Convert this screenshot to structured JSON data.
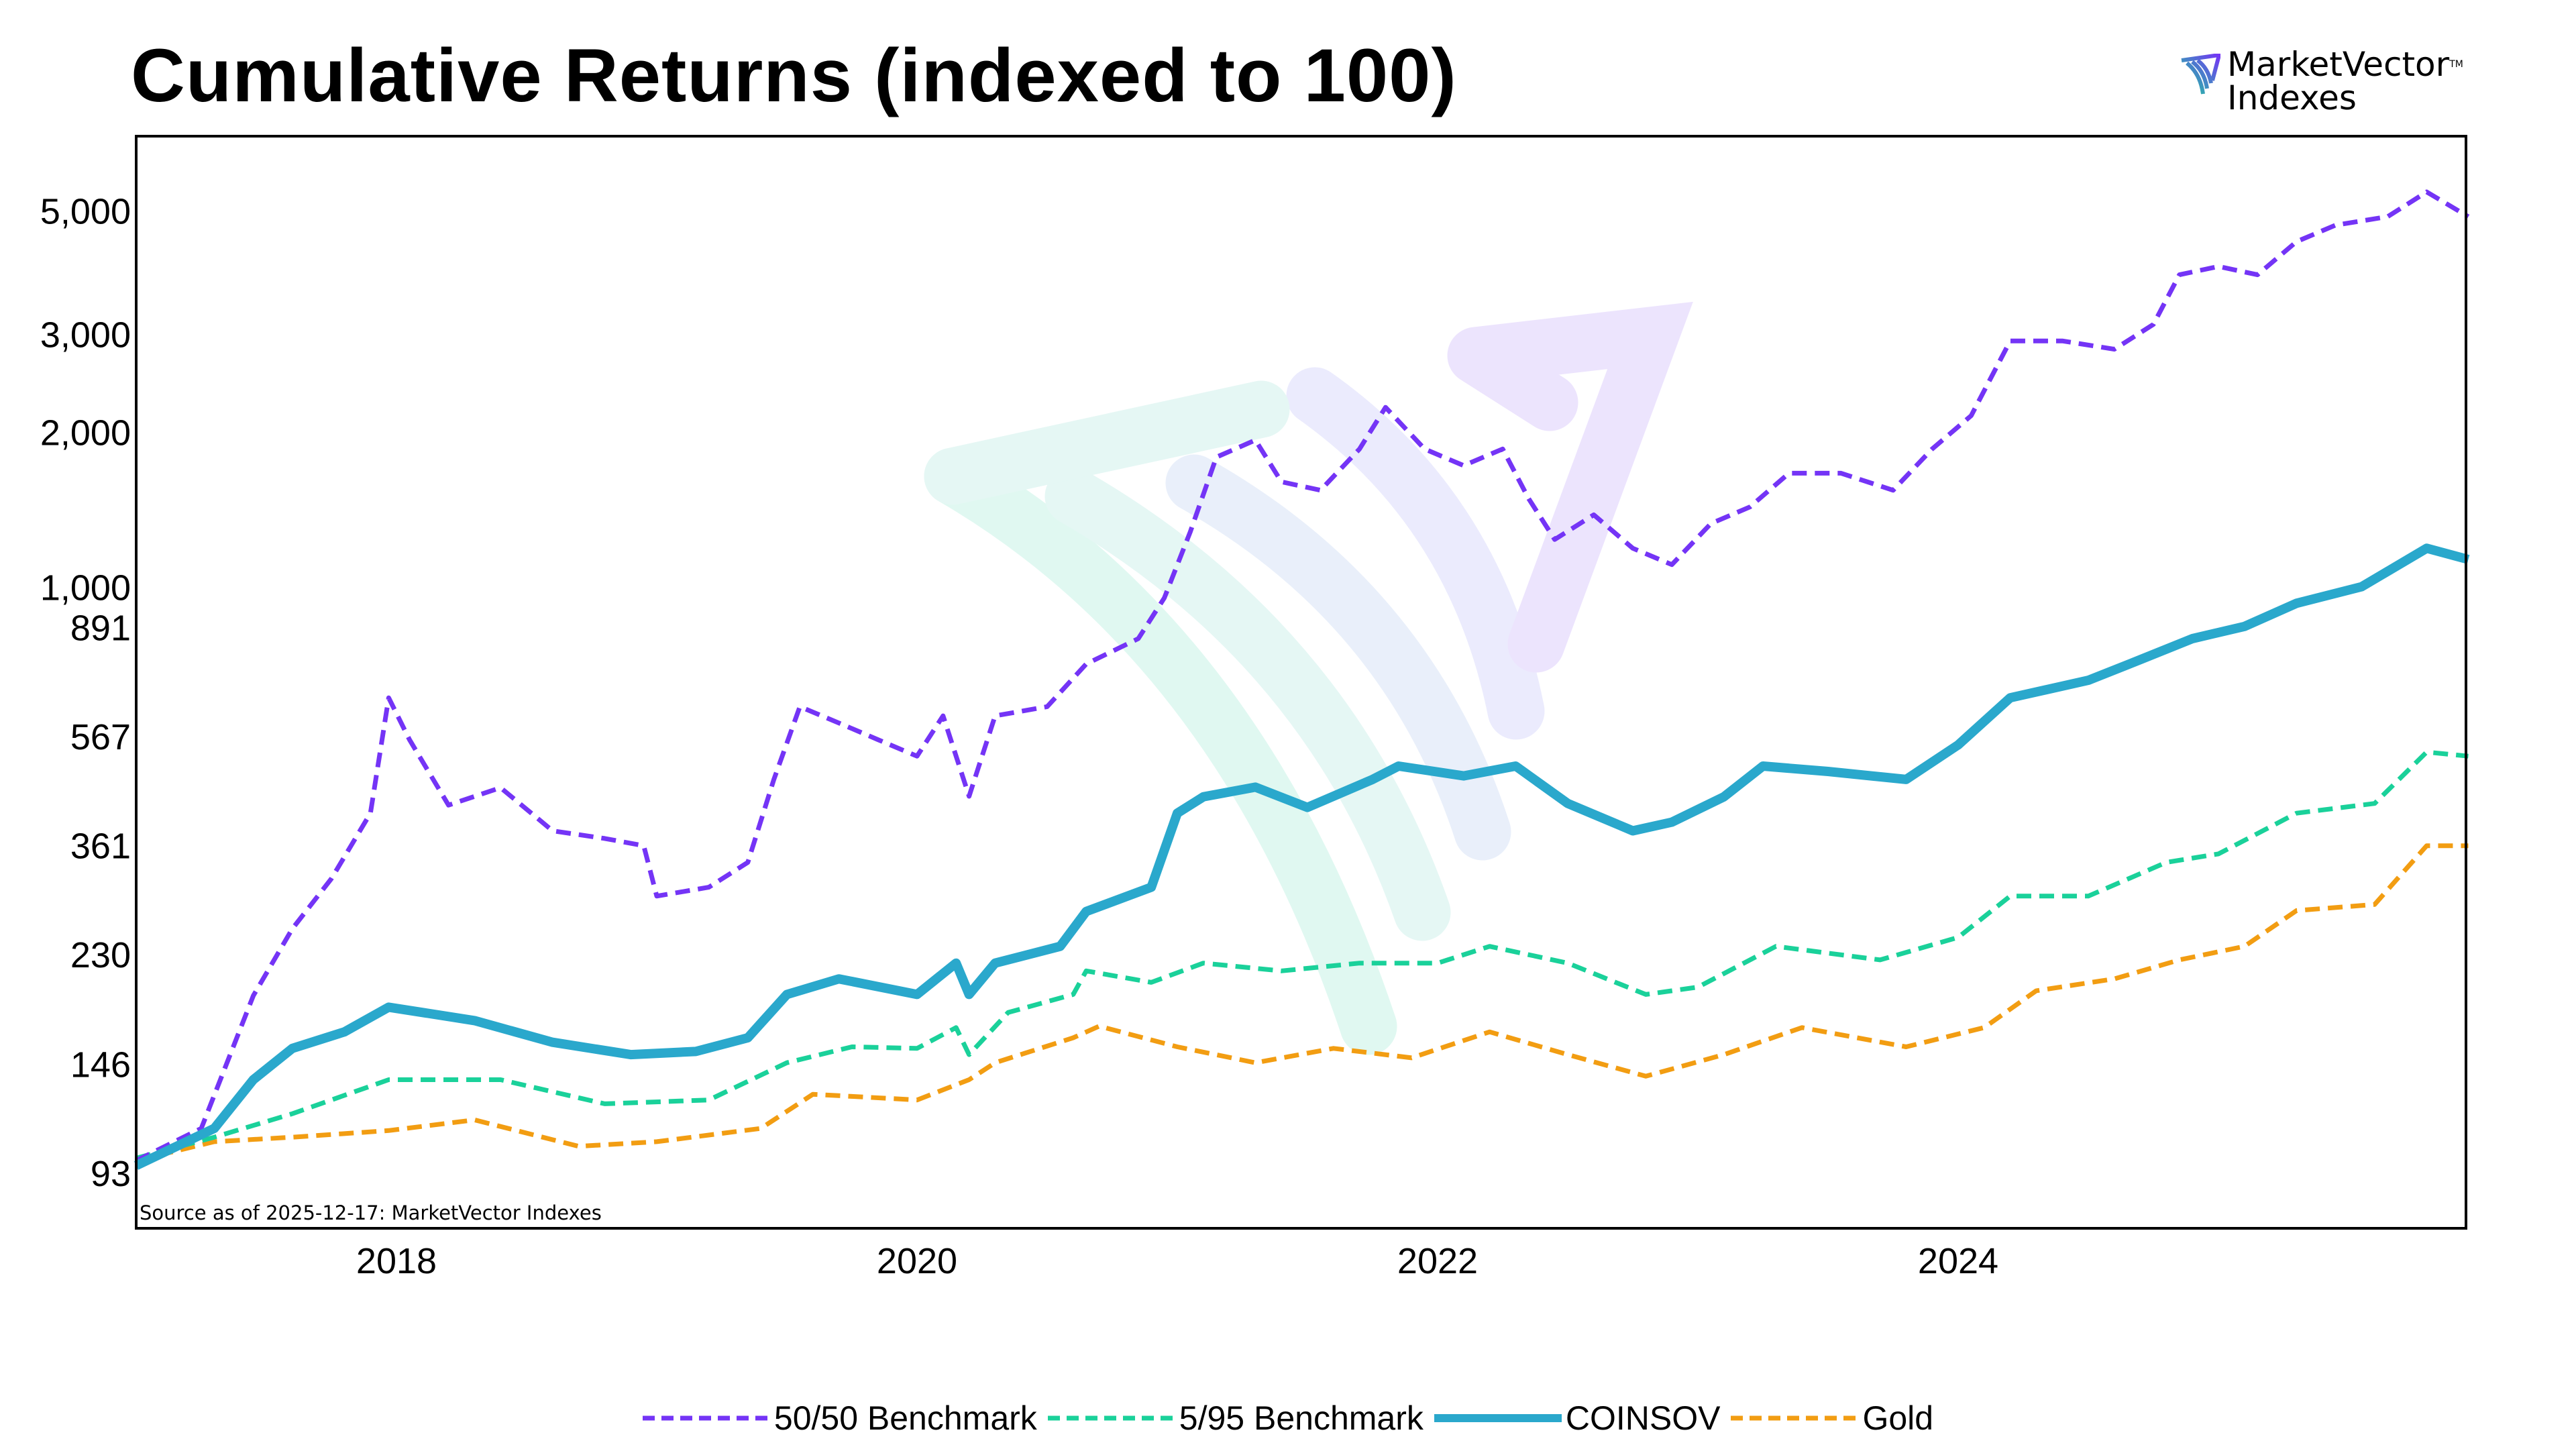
{
  "chart_data": {
    "type": "line",
    "title": "Cumulative Returns (indexed to 100)",
    "source_note": "Source as of 2025-12-17: MarketVector Indexes",
    "xlabel": "",
    "ylabel": "",
    "y_scale": "log",
    "ylim": [
      85,
      6500
    ],
    "xlim": [
      "2017-01-01",
      "2025-12-17"
    ],
    "x_ticks": [
      "2018",
      "2020",
      "2022",
      "2024"
    ],
    "y_ticks": [
      93,
      146,
      230,
      361,
      567,
      891,
      1000,
      2000,
      3000,
      5000
    ],
    "y_tick_labels": [
      "93",
      "146",
      "230",
      "361",
      "567",
      "891",
      "1,000",
      "2,000",
      "3,000",
      "5,000"
    ],
    "grid": false,
    "legend_position": "bottom",
    "series": [
      {
        "name": "50/50 Benchmark",
        "color": "#7434f6",
        "style": "dashed",
        "x": [
          2017.0,
          2017.25,
          2017.45,
          2017.6,
          2017.75,
          2017.9,
          2017.97,
          2018.05,
          2018.2,
          2018.4,
          2018.6,
          2018.8,
          2018.95,
          2019.0,
          2019.2,
          2019.35,
          2019.45,
          2019.55,
          2019.7,
          2019.85,
          2020.0,
          2020.1,
          2020.2,
          2020.3,
          2020.5,
          2020.65,
          2020.85,
          2020.95,
          2021.05,
          2021.15,
          2021.3,
          2021.4,
          2021.55,
          2021.7,
          2021.8,
          2021.95,
          2022.1,
          2022.25,
          2022.35,
          2022.45,
          2022.6,
          2022.75,
          2022.9,
          2023.05,
          2023.2,
          2023.35,
          2023.55,
          2023.75,
          2023.9,
          2024.05,
          2024.2,
          2024.4,
          2024.6,
          2024.75,
          2024.85,
          2025.0,
          2025.15,
          2025.3,
          2025.45,
          2025.65,
          2025.8,
          2025.96
        ],
        "values": [
          98,
          112,
          194,
          256,
          315,
          413,
          666,
          560,
          427,
          459,
          384,
          372,
          361,
          293,
          304,
          337,
          475,
          642,
          600,
          560,
          523,
          618,
          443,
          618,
          642,
          766,
          851,
          1007,
          1325,
          1804,
          1936,
          1629,
          1573,
          1866,
          2217,
          1866,
          1742,
          1866,
          1519,
          1283,
          1421,
          1237,
          1156,
          1370,
          1468,
          1688,
          1688,
          1573,
          1866,
          2142,
          2919,
          2919,
          2820,
          3125,
          3839,
          3973,
          3839,
          4403,
          4715,
          4882,
          5410,
          4882
        ]
      },
      {
        "name": "5/95 Benchmark",
        "color": "#1ad19a",
        "style": "dashed",
        "x": [
          2017.0,
          2017.3,
          2017.6,
          2017.97,
          2018.4,
          2018.8,
          2019.2,
          2019.5,
          2019.75,
          2020.0,
          2020.15,
          2020.2,
          2020.35,
          2020.6,
          2020.65,
          2020.9,
          2021.1,
          2021.4,
          2021.7,
          2022.0,
          2022.2,
          2022.5,
          2022.8,
          2023.0,
          2023.3,
          2023.7,
          2024.0,
          2024.2,
          2024.5,
          2024.8,
          2025.0,
          2025.3,
          2025.6,
          2025.8,
          2025.96
        ],
        "values": [
          99,
          108,
          119,
          137,
          137,
          124,
          126,
          147,
          157,
          156,
          170,
          152,
          181,
          195,
          215,
          205,
          222,
          215,
          222,
          222,
          238,
          222,
          195,
          201,
          238,
          225,
          247,
          293,
          293,
          337,
          349,
          413,
          430,
          532,
          523
        ]
      },
      {
        "name": "COINSOV",
        "color": "#2aa8cc",
        "style": "solid",
        "x": [
          2017.0,
          2017.3,
          2017.45,
          2017.6,
          2017.8,
          2017.97,
          2018.3,
          2018.6,
          2018.9,
          2019.15,
          2019.35,
          2019.5,
          2019.7,
          2020.0,
          2020.15,
          2020.2,
          2020.3,
          2020.55,
          2020.65,
          2020.9,
          2021.0,
          2021.1,
          2021.3,
          2021.5,
          2021.75,
          2021.85,
          2022.1,
          2022.3,
          2022.5,
          2022.75,
          2022.9,
          2023.1,
          2023.25,
          2023.5,
          2023.8,
          2024.0,
          2024.2,
          2024.5,
          2024.7,
          2024.9,
          2025.1,
          2025.3,
          2025.55,
          2025.8,
          2025.96
        ],
        "values": [
          96,
          112,
          137,
          156,
          167,
          185,
          175,
          160,
          152,
          154,
          163,
          195,
          208,
          195,
          222,
          195,
          222,
          238,
          275,
          304,
          413,
          442,
          460,
          423,
          475,
          502,
          482,
          502,
          430,
          384,
          398,
          442,
          502,
          491,
          475,
          548,
          666,
          716,
          780,
          851,
          895,
          985,
          1055,
          1237,
          1181
        ]
      },
      {
        "name": "Gold",
        "color": "#f29d12",
        "style": "dashed",
        "x": [
          2017.0,
          2017.3,
          2017.6,
          2017.97,
          2018.3,
          2018.7,
          2019.0,
          2019.4,
          2019.6,
          2020.0,
          2020.2,
          2020.3,
          2020.6,
          2020.7,
          2021.0,
          2021.3,
          2021.6,
          2021.9,
          2022.2,
          2022.5,
          2022.8,
          2023.1,
          2023.4,
          2023.8,
          2024.1,
          2024.3,
          2024.6,
          2024.85,
          2025.1,
          2025.3,
          2025.6,
          2025.8,
          2025.96
        ],
        "values": [
          98,
          106,
          108,
          111,
          116,
          104,
          106,
          112,
          129,
          126,
          137,
          147,
          163,
          171,
          157,
          147,
          156,
          150,
          167,
          152,
          139,
          152,
          170,
          157,
          170,
          198,
          208,
          225,
          238,
          276,
          283,
          361,
          361
        ]
      }
    ]
  },
  "logo": {
    "line1": "MarketVector",
    "line2": "Indexes",
    "tm": "TM"
  }
}
